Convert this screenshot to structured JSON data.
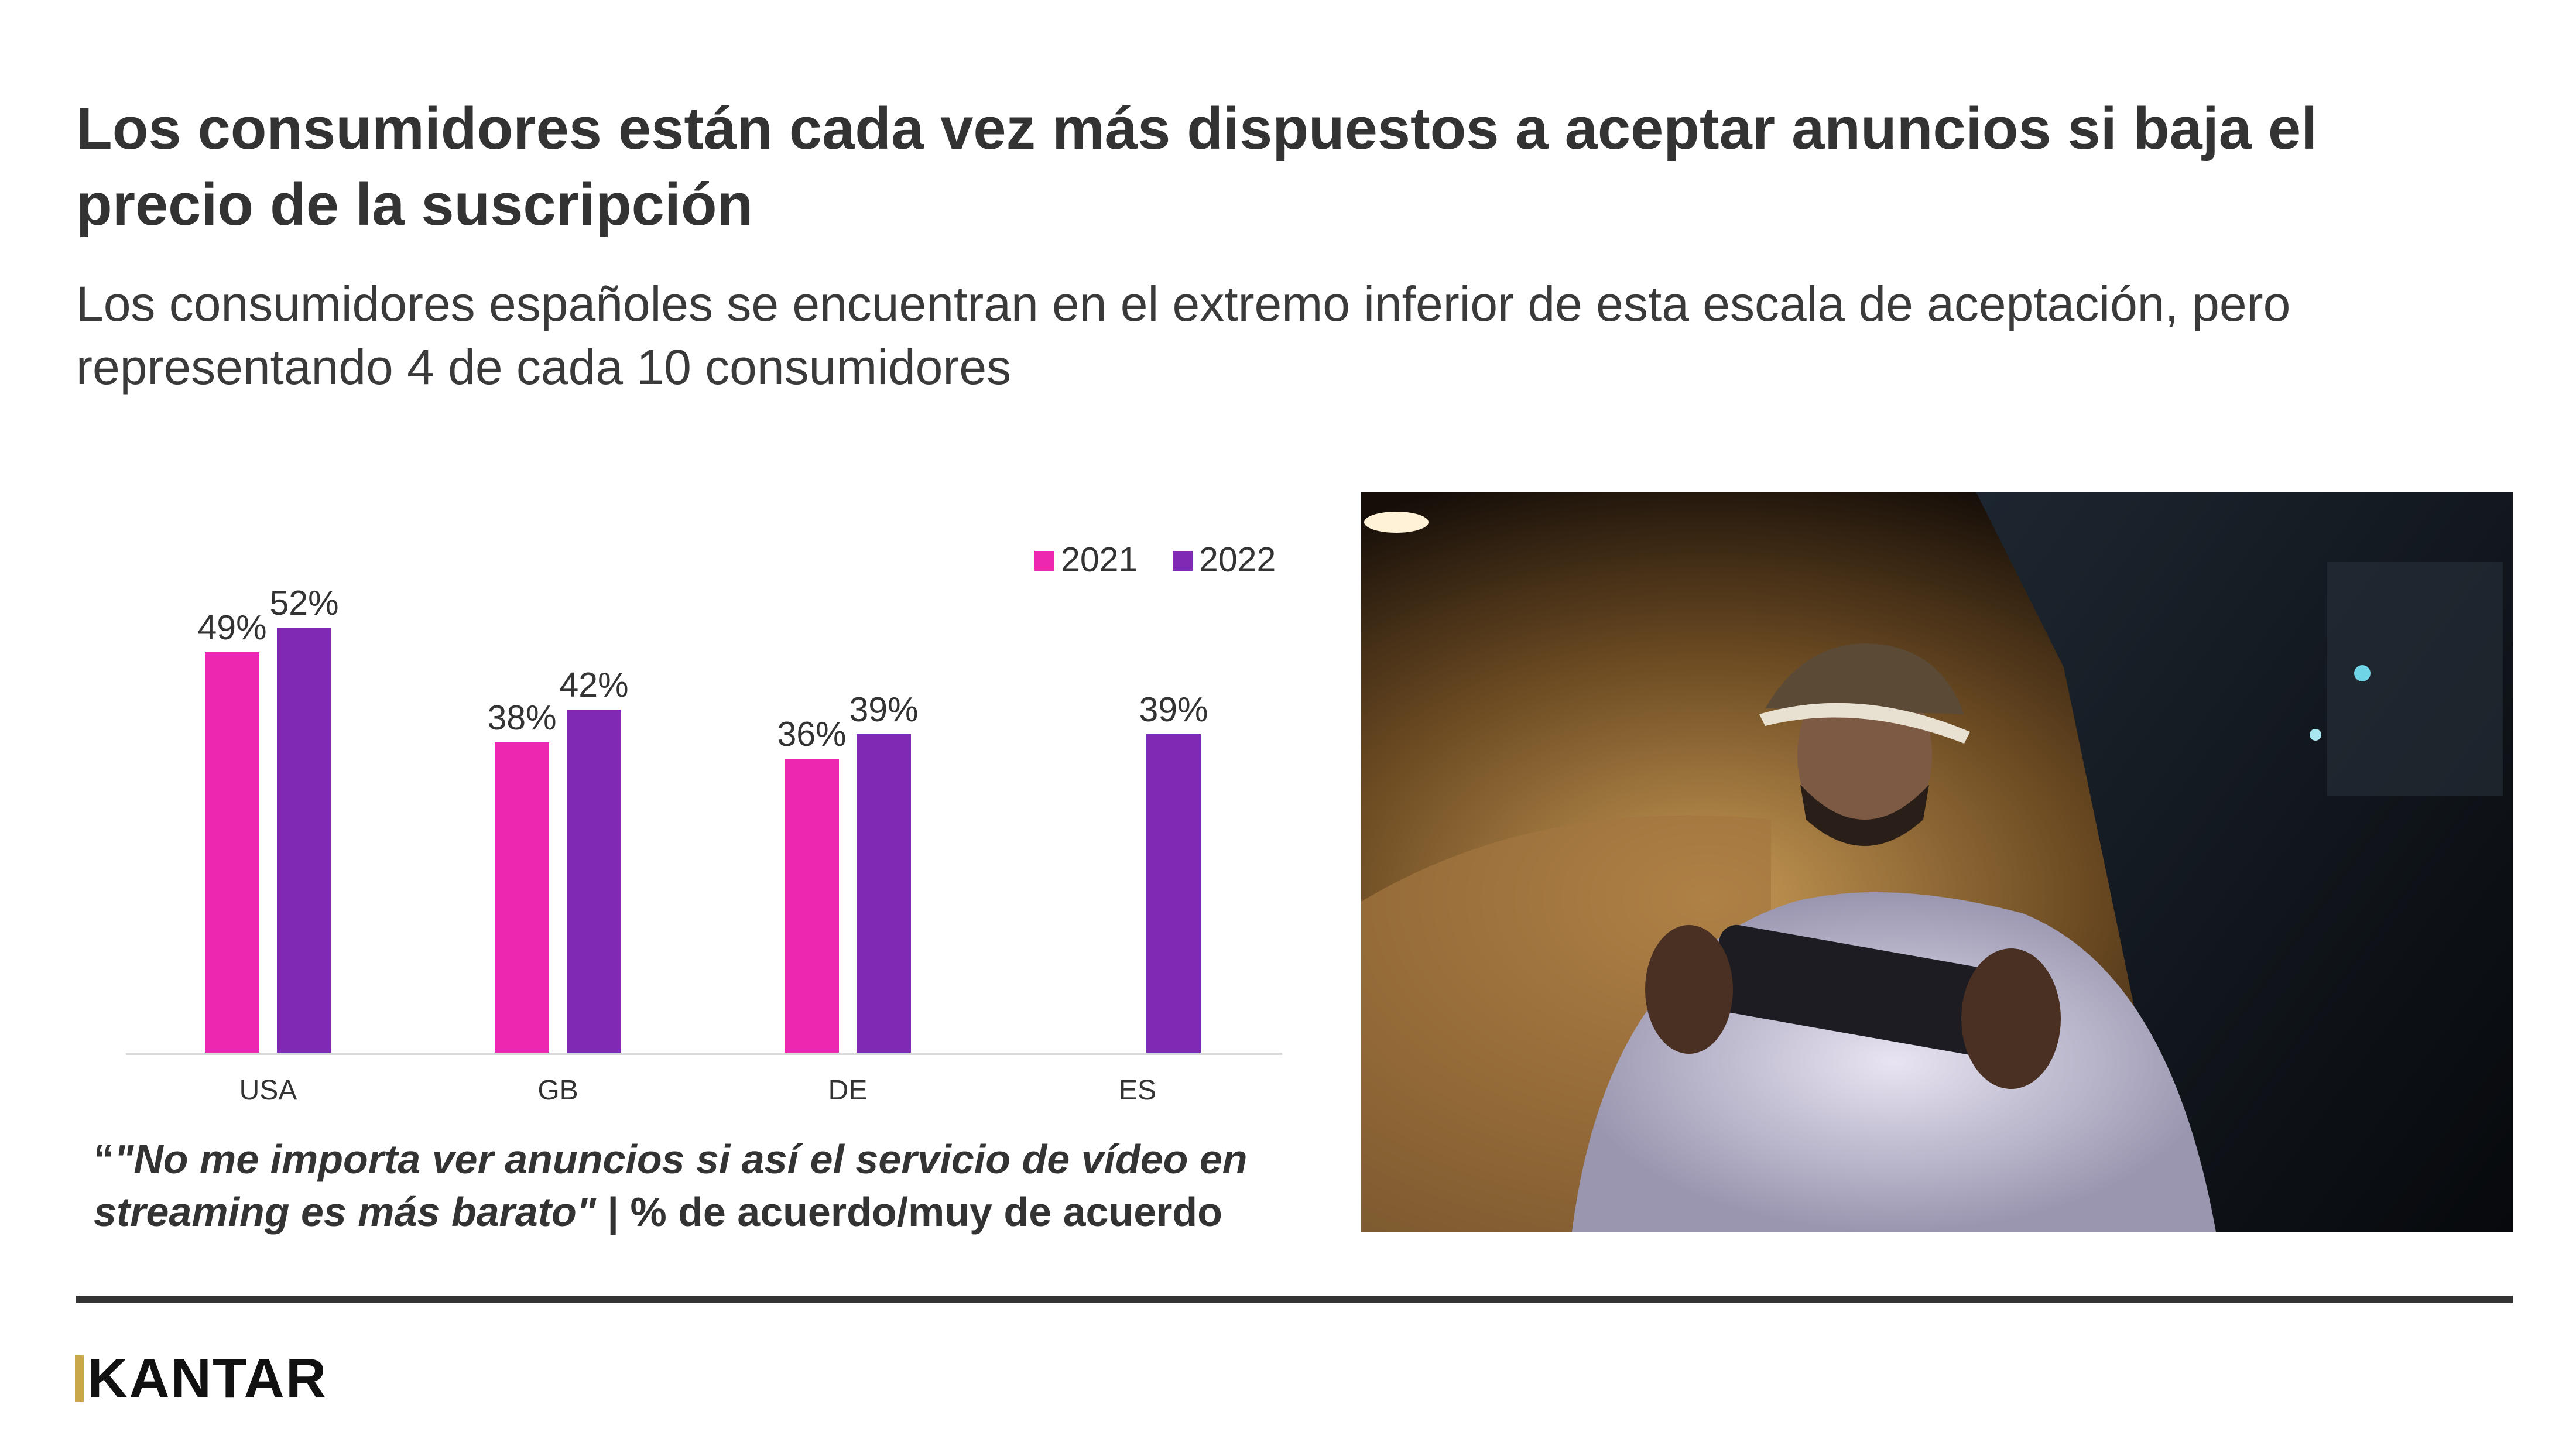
{
  "header": {
    "title": "Los consumidores están cada vez más dispuestos a aceptar anuncios si baja el precio de la suscripción",
    "subtitle": "Los consumidores españoles se encuentran en el extremo inferior de esta escala de aceptación, pero representando 4 de cada 10 consumidores"
  },
  "chart_data": {
    "type": "bar",
    "categories": [
      "USA",
      "GB",
      "DE",
      "ES"
    ],
    "series": [
      {
        "name": "2021",
        "color": "#ee27b0",
        "values": [
          49,
          38,
          36,
          null
        ],
        "labels": [
          "49%",
          "38%",
          "36%",
          ""
        ]
      },
      {
        "name": "2022",
        "color": "#8029b4",
        "values": [
          52,
          42,
          39,
          39
        ],
        "labels": [
          "52%",
          "42%",
          "39%",
          "39%"
        ]
      }
    ],
    "ylim": [
      0,
      60
    ],
    "grid": false,
    "legend_position": "top-right",
    "xlabel": "",
    "ylabel": ""
  },
  "quote": {
    "open_mark": "“",
    "text": "\"No me importa ver anuncios si así el servicio de vídeo en streaming es más barato\"",
    "suffix": " | % de acuerdo/muy de acuerdo"
  },
  "brand": {
    "logo_text": "KANTAR",
    "accent_color": "#c8a84b"
  }
}
